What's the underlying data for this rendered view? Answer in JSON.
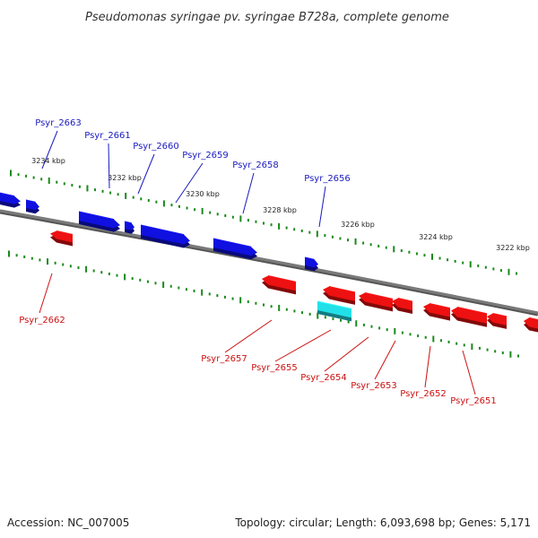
{
  "title": "Pseudomonas syringae pv. syringae B728a, complete genome",
  "footer": {
    "accession": "Accession: NC_007005",
    "summary": "Topology: circular; Length: 6,093,698 bp; Genes: 5,171"
  },
  "colors": {
    "forward_gene": "#1010e0",
    "reverse_gene": "#ee1111",
    "highlight_gene": "#22e0e8",
    "backbone": "#7a7a7a",
    "tick": "#1a8a1a",
    "forward_label": "#1a1ac0",
    "reverse_label": "#cc1111"
  },
  "scale_labels": [
    "3234 kbp",
    "3232 kbp",
    "3230 kbp",
    "3228 kbp",
    "3226 kbp",
    "3224 kbp",
    "3222 kbp"
  ],
  "forward_genes": [
    {
      "name": "Psyr_2663"
    },
    {
      "name": "Psyr_2661"
    },
    {
      "name": "Psyr_2660"
    },
    {
      "name": "Psyr_2659"
    },
    {
      "name": "Psyr_2658"
    },
    {
      "name": "Psyr_2656"
    }
  ],
  "reverse_genes": [
    {
      "name": "Psyr_2662"
    },
    {
      "name": "Psyr_2657"
    },
    {
      "name": "Psyr_2655"
    },
    {
      "name": "Psyr_2654"
    },
    {
      "name": "Psyr_2653"
    },
    {
      "name": "Psyr_2652"
    },
    {
      "name": "Psyr_2651"
    }
  ]
}
